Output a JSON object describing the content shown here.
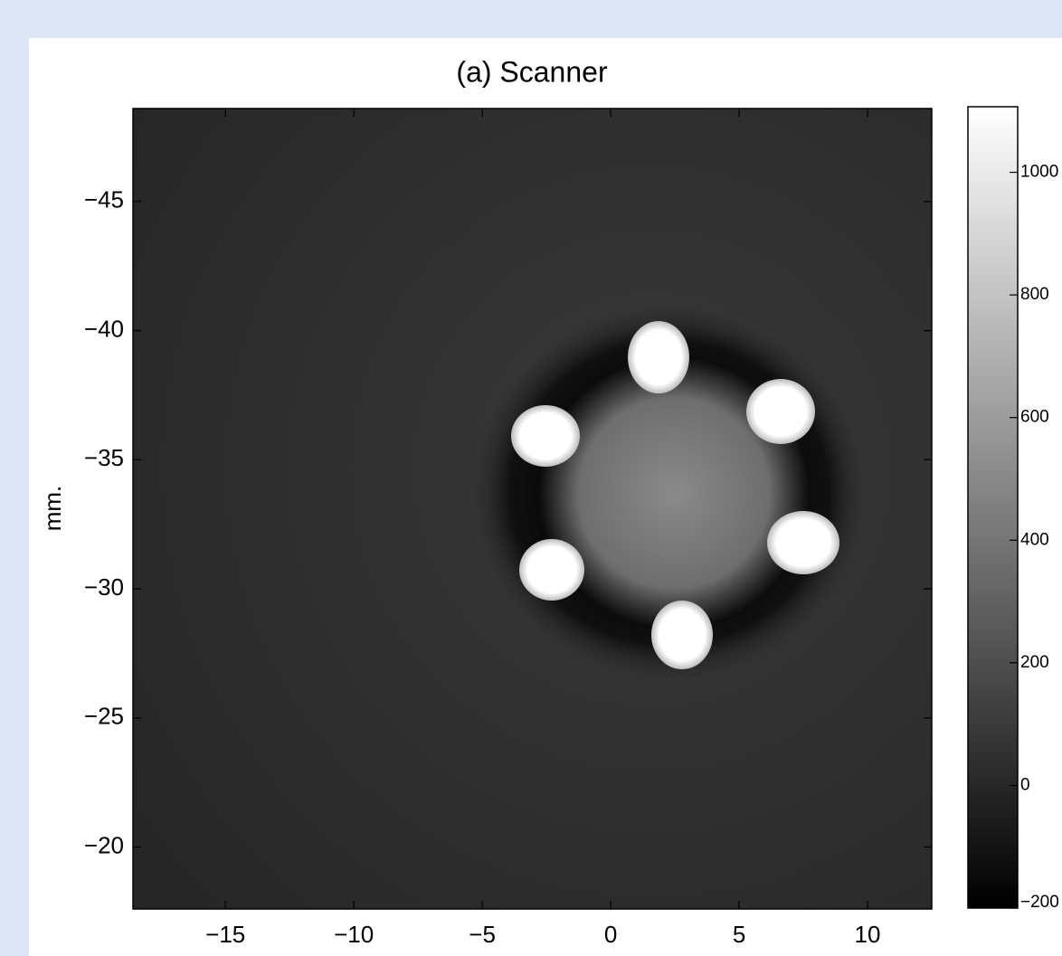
{
  "chart_data": {
    "type": "image",
    "title": "(a) Scanner",
    "y_label": "mm.",
    "xlim": [
      -18.6,
      12.5
    ],
    "xticks": [
      {
        "value": -15,
        "label": "−15"
      },
      {
        "value": -10,
        "label": "−10"
      },
      {
        "value": -5,
        "label": "−5"
      },
      0,
      5,
      10
    ],
    "ylim": [
      -48.6,
      -17.6
    ],
    "y_reversed": true,
    "yticks": [
      {
        "value": -45,
        "label": "−45"
      },
      {
        "value": -40,
        "label": "−40"
      },
      {
        "value": -35,
        "label": "−35"
      },
      {
        "value": -30,
        "label": "−30"
      },
      {
        "value": -25,
        "label": "−25"
      },
      {
        "value": -20,
        "label": "−20"
      }
    ],
    "colorbar": {
      "clim": [
        -200,
        1107
      ],
      "ticks": [
        {
          "value": -200,
          "label": "−200"
        },
        0,
        200,
        400,
        600,
        800,
        1000
      ]
    }
  }
}
